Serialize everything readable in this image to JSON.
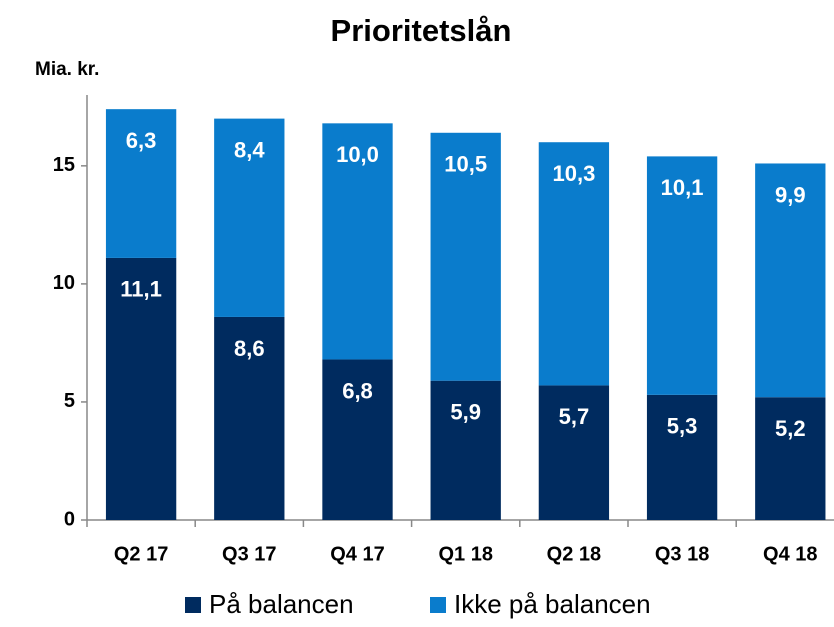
{
  "chart_data": {
    "type": "stacked_bar",
    "title": "Prioritetslån",
    "y_label": "Mia. kr.",
    "categories": [
      "Q2 17",
      "Q3 17",
      "Q4 17",
      "Q1 18",
      "Q2 18",
      "Q3 18",
      "Q4 18"
    ],
    "series": [
      {
        "name": "På balancen",
        "color": "#002b5f",
        "values": [
          11.1,
          8.6,
          6.8,
          5.9,
          5.7,
          5.3,
          5.2
        ],
        "value_labels": [
          "11,1",
          "8,6",
          "6,8",
          "5,9",
          "5,7",
          "5,3",
          "5,2"
        ]
      },
      {
        "name": "Ikke på balancen",
        "color": "#0a7ccc",
        "values": [
          6.3,
          8.4,
          10.0,
          10.5,
          10.3,
          10.1,
          9.9
        ],
        "value_labels": [
          "6,3",
          "8,4",
          "10,0",
          "10,5",
          "10,3",
          "10,1",
          "9,9"
        ]
      }
    ],
    "ylim": [
      0,
      18
    ],
    "yticks": [
      0,
      5,
      10,
      15
    ],
    "legend": "bottom"
  }
}
